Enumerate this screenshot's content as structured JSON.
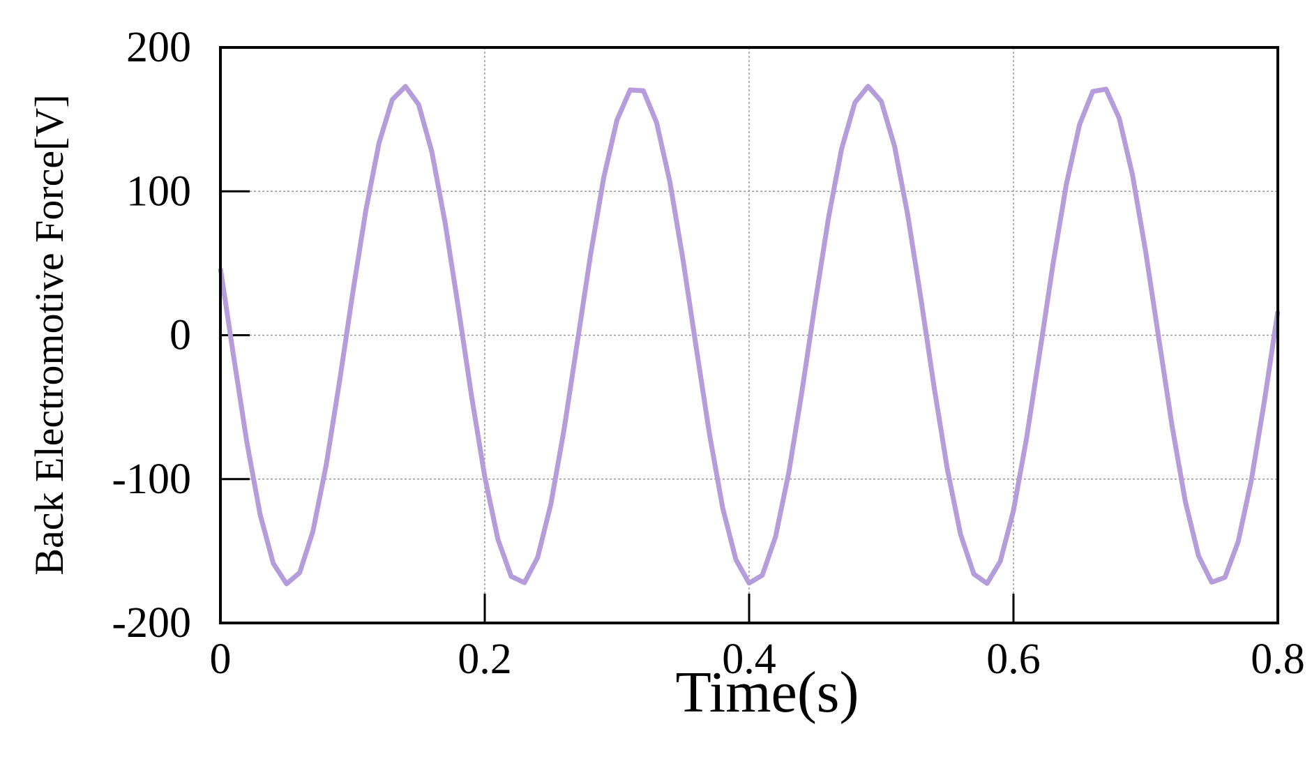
{
  "chart_data": {
    "type": "line",
    "xlabel": "Time(s)",
    "ylabel": "Back Electromotive Force[V]",
    "xlim": [
      0,
      0.8
    ],
    "xticks": [
      0,
      0.2,
      0.4,
      0.6,
      0.8
    ],
    "ylim": [
      -200,
      200
    ],
    "yticks": [
      -200,
      -100,
      0,
      100,
      200
    ],
    "grid": true,
    "x": [
      0,
      0.01,
      0.02,
      0.03,
      0.04,
      0.05,
      0.06,
      0.07,
      0.08,
      0.09,
      0.1,
      0.11,
      0.12,
      0.13,
      0.14,
      0.15,
      0.16,
      0.17,
      0.18,
      0.19,
      0.2,
      0.21,
      0.22,
      0.23,
      0.24,
      0.25,
      0.26,
      0.27,
      0.28,
      0.29,
      0.3,
      0.31,
      0.32,
      0.33,
      0.34,
      0.35,
      0.36,
      0.37,
      0.38,
      0.39,
      0.4,
      0.41,
      0.42,
      0.43,
      0.44,
      0.45,
      0.46,
      0.47,
      0.48,
      0.49,
      0.5,
      0.51,
      0.52,
      0.53,
      0.54,
      0.55,
      0.56,
      0.57,
      0.58,
      0.59,
      0.6,
      0.61,
      0.62,
      0.63,
      0.64,
      0.65,
      0.66,
      0.67,
      0.68,
      0.69,
      0.7,
      0.71,
      0.72,
      0.73,
      0.74,
      0.75,
      0.76,
      0.77,
      0.78,
      0.79,
      0.8
    ],
    "series": [
      {
        "color": "#b59ddb",
        "values": [
          46.5,
          -14.8,
          -74.3,
          -124.4,
          -158.6,
          -172.8,
          -165.0,
          -136.3,
          -90.4,
          -32.9,
          28.7,
          86.6,
          133.6,
          163.7,
          172.9,
          160.3,
          127.3,
          78.2,
          19.2,
          -42.3,
          -98.4,
          -142.0,
          -167.6,
          -172.0,
          -154.5,
          -117.4,
          -65.5,
          -5.2,
          55.7,
          109.5,
          149.5,
          170.5,
          169.9,
          147.8,
          106.8,
          52.4,
          -8.7,
          -68.7,
          -120.0,
          -156.0,
          -172.3,
          -166.8,
          -140.0,
          -95.5,
          -38.9,
          22.6,
          81.3,
          129.6,
          161.6,
          173.0,
          162.5,
          131.4,
          83.6,
          25.2,
          -36.3,
          -93.3,
          -138.5,
          -166.0,
          -172.5,
          -157.2,
          -121.9,
          -71.1,
          -11.3,
          49.9,
          104.8,
          146.4,
          169.4,
          171.0,
          150.8,
          111.6,
          58.2,
          -2.6,
          -63.1,
          -115.5,
          -153.3,
          -171.7,
          -168.3,
          -143.5,
          -100.6,
          -44.9,
          16.6
        ]
      }
    ]
  }
}
